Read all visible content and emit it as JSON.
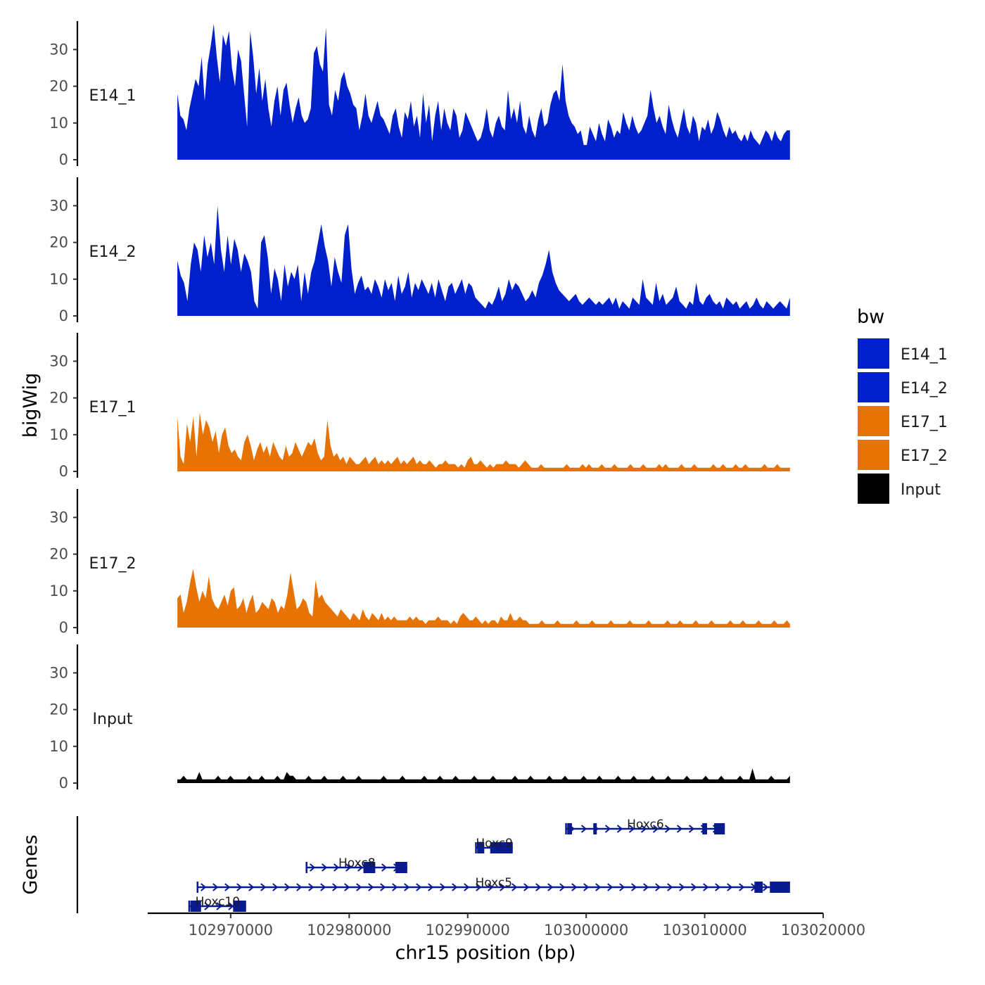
{
  "chart_data": {
    "type": "area",
    "panel_title": "bigWig",
    "genes_title": "Genes",
    "xlabel": "chr15 position (bp)",
    "x_tick_labels": [
      "102970000",
      "102980000",
      "102990000",
      "103000000",
      "103010000",
      "103020000"
    ],
    "x_ticks": [
      102970000,
      102980000,
      102990000,
      103000000,
      103010000,
      103020000
    ],
    "xlim": [
      102963000,
      103020000
    ],
    "data_x_range": [
      102965500,
      103017200
    ],
    "ylim": [
      0,
      36
    ],
    "y_ticks": [
      0,
      10,
      20,
      30
    ],
    "y_tick_labels": [
      "0",
      "10",
      "20",
      "30"
    ],
    "colors": {
      "E14": "#0020cc",
      "E17": "#e87305",
      "Input": "#000000",
      "gene": "#0a1a8f"
    },
    "legend": {
      "title": "bw",
      "position": "right",
      "entries": [
        {
          "label": "E14_1",
          "color": "#0020cc"
        },
        {
          "label": "E14_2",
          "color": "#0020cc"
        },
        {
          "label": "E17_1",
          "color": "#e87305"
        },
        {
          "label": "E17_2",
          "color": "#e87305"
        },
        {
          "label": "Input",
          "color": "#000000"
        }
      ]
    },
    "series": [
      {
        "name": "E14_1",
        "color": "#0020cc",
        "values": [
          18,
          12,
          11,
          8,
          14,
          18,
          22,
          20,
          28,
          16,
          26,
          31,
          37,
          28,
          21,
          34,
          31,
          35,
          25,
          20,
          30,
          27,
          18,
          9,
          35,
          28,
          18,
          25,
          16,
          22,
          14,
          9,
          16,
          20,
          12,
          19,
          21,
          15,
          10,
          14,
          17,
          12,
          10,
          11,
          14,
          29,
          31,
          26,
          24,
          36,
          15,
          12,
          19,
          16,
          22,
          24,
          20,
          18,
          15,
          14,
          8,
          12,
          18,
          12,
          10,
          13,
          16,
          12,
          11,
          9,
          7,
          12,
          14,
          9,
          6,
          13,
          11,
          16,
          9,
          12,
          6,
          18,
          10,
          15,
          5,
          12,
          16,
          8,
          14,
          10,
          8,
          14,
          12,
          6,
          8,
          13,
          11,
          9,
          7,
          5,
          6,
          9,
          14,
          8,
          6,
          10,
          12,
          9,
          8,
          19,
          11,
          14,
          10,
          16,
          9,
          7,
          12,
          8,
          6,
          11,
          14,
          9,
          10,
          15,
          18,
          19,
          16,
          26,
          16,
          12,
          10,
          9,
          7,
          8,
          4,
          4,
          9,
          7,
          5,
          10,
          7,
          5,
          11,
          9,
          6,
          8,
          7,
          13,
          10,
          8,
          12,
          9,
          7,
          8,
          10,
          12,
          19,
          14,
          10,
          12,
          9,
          7,
          15,
          11,
          8,
          6,
          10,
          14,
          9,
          7,
          12,
          10,
          5,
          9,
          8,
          11,
          7,
          9,
          13,
          11,
          8,
          6,
          9,
          7,
          8,
          6,
          5,
          7,
          5,
          8,
          6,
          5,
          4,
          6,
          8,
          7,
          5,
          8,
          6,
          5,
          7,
          8,
          8
        ]
      },
      {
        "name": "E14_2",
        "color": "#0020cc",
        "values": [
          15,
          11,
          9,
          4,
          14,
          20,
          18,
          12,
          22,
          16,
          20,
          14,
          30,
          18,
          12,
          22,
          14,
          21,
          18,
          12,
          17,
          15,
          12,
          4,
          2,
          20,
          22,
          16,
          6,
          13,
          10,
          4,
          14,
          8,
          12,
          10,
          14,
          4,
          12,
          6,
          12,
          15,
          20,
          25,
          19,
          15,
          8,
          16,
          12,
          9,
          22,
          25,
          13,
          6,
          9,
          11,
          7,
          8,
          6,
          10,
          8,
          5,
          10,
          7,
          9,
          4,
          11,
          6,
          8,
          12,
          5,
          9,
          7,
          10,
          8,
          6,
          9,
          5,
          10,
          7,
          4,
          8,
          9,
          6,
          8,
          10,
          6,
          9,
          8,
          5,
          4,
          3,
          2,
          4,
          3,
          5,
          8,
          4,
          6,
          10,
          7,
          9,
          8,
          6,
          4,
          5,
          7,
          5,
          9,
          11,
          14,
          18,
          12,
          9,
          7,
          6,
          5,
          4,
          5,
          6,
          4,
          3,
          4,
          5,
          4,
          3,
          4,
          3,
          4,
          5,
          3,
          5,
          2,
          4,
          3,
          2,
          5,
          4,
          3,
          10,
          5,
          4,
          3,
          9,
          4,
          6,
          3,
          4,
          5,
          8,
          4,
          3,
          2,
          4,
          3,
          9,
          4,
          3,
          5,
          6,
          4,
          3,
          4,
          2,
          5,
          4,
          3,
          4,
          2,
          3,
          4,
          2,
          3,
          5,
          3,
          2,
          4,
          3,
          2,
          3,
          4,
          3,
          2,
          5
        ]
      },
      {
        "name": "E17_1",
        "color": "#e87305",
        "values": [
          15,
          4,
          2,
          13,
          8,
          15,
          4,
          16,
          10,
          14,
          12,
          8,
          11,
          5,
          10,
          12,
          7,
          5,
          6,
          4,
          3,
          8,
          10,
          7,
          3,
          6,
          8,
          5,
          7,
          4,
          8,
          6,
          4,
          3,
          7,
          4,
          5,
          8,
          6,
          4,
          6,
          8,
          7,
          9,
          5,
          3,
          4,
          14,
          7,
          4,
          5,
          3,
          4,
          2,
          4,
          3,
          2,
          2,
          3,
          4,
          2,
          3,
          4,
          2,
          3,
          2,
          3,
          2,
          3,
          4,
          2,
          3,
          2,
          3,
          4,
          2,
          3,
          2,
          2,
          3,
          2,
          1,
          2,
          2,
          3,
          2,
          2,
          2,
          1,
          2,
          1,
          3,
          4,
          2,
          2,
          3,
          2,
          1,
          2,
          1,
          2,
          2,
          2,
          3,
          2,
          2,
          2,
          1,
          2,
          3,
          2,
          1,
          1,
          1,
          2,
          1,
          1,
          1,
          1,
          1,
          1,
          1,
          2,
          1,
          1,
          1,
          1,
          2,
          1,
          2,
          1,
          1,
          1,
          2,
          1,
          1,
          1,
          2,
          1,
          1,
          1,
          1,
          2,
          1,
          1,
          1,
          2,
          1,
          1,
          1,
          1,
          2,
          1,
          2,
          1,
          1,
          1,
          1,
          2,
          1,
          1,
          1,
          2,
          1,
          1,
          1,
          1,
          1,
          2,
          1,
          1,
          2,
          1,
          1,
          1,
          2,
          1,
          1,
          2,
          1,
          1,
          1,
          1,
          1,
          2,
          1,
          1,
          1,
          2,
          1,
          1,
          1,
          1
        ]
      },
      {
        "name": "E17_2",
        "color": "#e87305",
        "values": [
          8,
          9,
          4,
          7,
          12,
          16,
          11,
          7,
          10,
          8,
          14,
          8,
          6,
          5,
          7,
          9,
          6,
          10,
          11,
          5,
          6,
          8,
          4,
          7,
          9,
          4,
          5,
          7,
          6,
          5,
          8,
          7,
          4,
          6,
          5,
          9,
          15,
          10,
          5,
          6,
          8,
          7,
          4,
          3,
          13,
          8,
          9,
          7,
          6,
          5,
          4,
          3,
          5,
          4,
          3,
          2,
          4,
          3,
          2,
          5,
          3,
          2,
          4,
          3,
          2,
          4,
          2,
          3,
          2,
          3,
          2,
          2,
          2,
          2,
          3,
          2,
          3,
          2,
          2,
          1,
          2,
          2,
          2,
          3,
          2,
          2,
          2,
          1,
          2,
          1,
          3,
          4,
          3,
          2,
          2,
          3,
          2,
          1,
          2,
          1,
          2,
          2,
          1,
          3,
          2,
          2,
          4,
          2,
          2,
          3,
          2,
          2,
          1,
          1,
          1,
          1,
          2,
          1,
          1,
          1,
          1,
          2,
          1,
          1,
          1,
          1,
          1,
          2,
          1,
          1,
          1,
          1,
          2,
          1,
          1,
          1,
          1,
          1,
          2,
          1,
          1,
          1,
          1,
          1,
          2,
          1,
          1,
          1,
          1,
          1,
          2,
          1,
          1,
          1,
          1,
          1,
          2,
          1,
          1,
          1,
          2,
          1,
          1,
          1,
          1,
          2,
          1,
          1,
          1,
          1,
          2,
          1,
          1,
          1,
          1,
          1,
          2,
          1,
          1,
          1,
          2,
          1,
          1,
          1,
          1,
          2,
          1,
          1,
          1,
          1,
          2,
          1,
          1,
          1,
          2,
          1
        ]
      },
      {
        "name": "Input",
        "color": "#000000",
        "values": [
          1,
          1,
          2,
          1,
          1,
          1,
          1,
          3,
          1,
          1,
          1,
          1,
          1,
          2,
          1,
          1,
          1,
          2,
          1,
          1,
          1,
          1,
          1,
          2,
          1,
          1,
          1,
          2,
          1,
          1,
          1,
          1,
          2,
          1,
          1,
          3,
          2,
          2,
          1,
          1,
          1,
          1,
          2,
          1,
          1,
          1,
          1,
          2,
          1,
          1,
          1,
          1,
          1,
          2,
          1,
          1,
          1,
          1,
          2,
          1,
          1,
          1,
          1,
          1,
          1,
          1,
          2,
          1,
          1,
          1,
          1,
          1,
          2,
          1,
          1,
          1,
          1,
          1,
          1,
          2,
          1,
          1,
          1,
          1,
          2,
          1,
          1,
          1,
          1,
          2,
          1,
          1,
          1,
          1,
          1,
          2,
          1,
          1,
          1,
          1,
          1,
          2,
          1,
          1,
          1,
          1,
          1,
          1,
          2,
          1,
          1,
          1,
          1,
          2,
          1,
          1,
          1,
          1,
          1,
          2,
          1,
          1,
          1,
          1,
          2,
          1,
          1,
          1,
          1,
          1,
          2,
          1,
          1,
          1,
          1,
          2,
          1,
          1,
          1,
          1,
          1,
          2,
          1,
          1,
          1,
          1,
          2,
          1,
          1,
          1,
          1,
          1,
          2,
          1,
          1,
          1,
          1,
          2,
          1,
          1,
          1,
          1,
          1,
          2,
          1,
          1,
          1,
          1,
          1,
          2,
          1,
          1,
          1,
          1,
          2,
          1,
          1,
          1,
          1,
          1,
          2,
          1,
          1,
          1,
          4,
          1,
          1,
          1,
          1,
          1,
          2,
          1,
          1,
          1,
          1,
          1,
          2
        ]
      }
    ],
    "genes": [
      {
        "name": "Hoxc6",
        "start": 102998300,
        "end": 103011700,
        "row": 4,
        "exons": [
          [
            102998400,
            102998800
          ],
          [
            103000600,
            103000800
          ],
          [
            103009800,
            103010200
          ],
          [
            103010800,
            103011700
          ]
        ]
      },
      {
        "name": "Hoxc9",
        "start": 102990700,
        "end": 102993800,
        "row": 3,
        "exons": [
          [
            102990800,
            102991400
          ],
          [
            102991900,
            102993800
          ]
        ]
      },
      {
        "name": "Hoxc8",
        "start": 102976400,
        "end": 102984900,
        "row": 2,
        "exons": [
          [
            102981200,
            102982200
          ],
          [
            102983900,
            102984900
          ]
        ]
      },
      {
        "name": "Hoxc5",
        "start": 102967200,
        "end": 103017200,
        "row": 1,
        "exons": [
          [
            103014200,
            103014900
          ],
          [
            103015500,
            103017200
          ]
        ]
      },
      {
        "name": "Hoxc10",
        "start": 102966500,
        "end": 102971300,
        "row": 0,
        "exons": [
          [
            102966600,
            102967500
          ],
          [
            102970200,
            102971300
          ]
        ]
      }
    ]
  }
}
